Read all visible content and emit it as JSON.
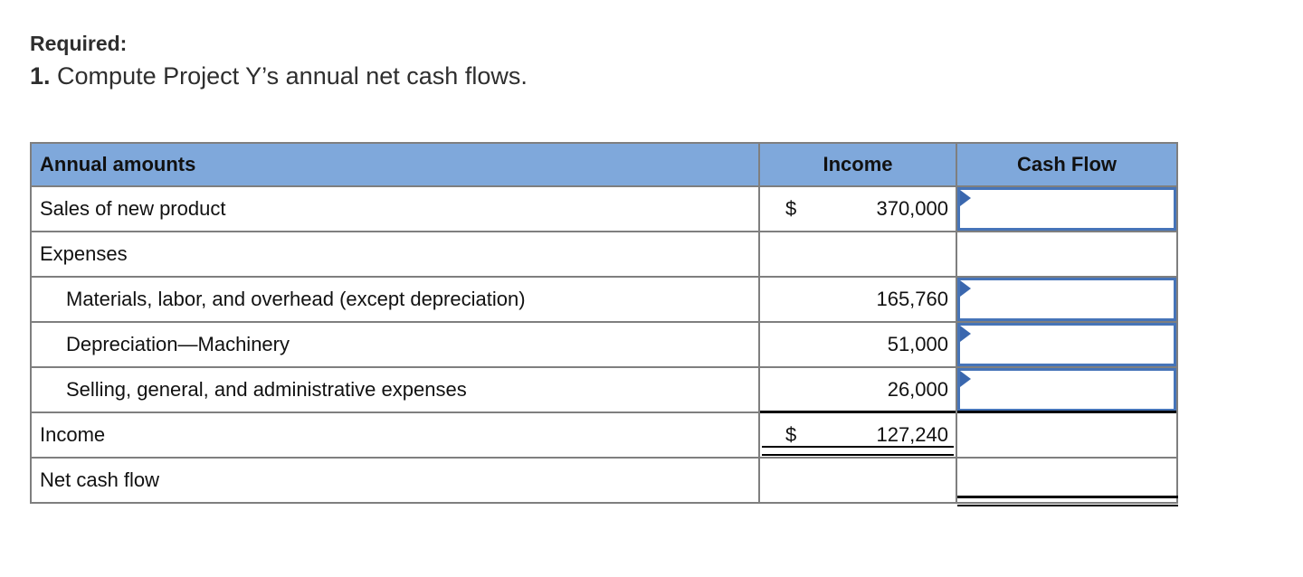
{
  "heading": {
    "required": "Required:",
    "item_number": "1.",
    "item_text": "Compute Project Y’s annual net cash flows."
  },
  "table": {
    "headers": {
      "annual_amounts": "Annual amounts",
      "income": "Income",
      "cash_flow": "Cash Flow"
    },
    "rows": [
      {
        "label": "Sales of new product",
        "income_dollar": "$",
        "income_amount": "370,000",
        "cash_flow_input": ""
      },
      {
        "label": "Expenses"
      },
      {
        "label": "Materials, labor, and overhead (except depreciation)",
        "income_amount": "165,760",
        "cash_flow_input": ""
      },
      {
        "label": "Depreciation—Machinery",
        "income_amount": "51,000",
        "cash_flow_input": ""
      },
      {
        "label": "Selling, general, and administrative expenses",
        "income_amount": "26,000",
        "cash_flow_input": ""
      },
      {
        "label": "Income",
        "income_dollar": "$",
        "income_amount": "127,240"
      },
      {
        "label": "Net cash flow"
      }
    ],
    "colors": {
      "header_bg": "#7fa8db",
      "grid_border": "#7f7f7f",
      "input_border": "#4674b8",
      "flag_marker": "#3a67ae",
      "rule_black": "#000000"
    }
  }
}
